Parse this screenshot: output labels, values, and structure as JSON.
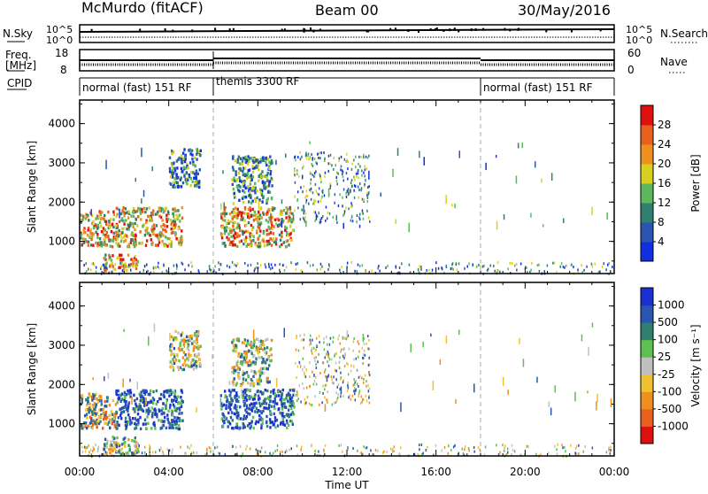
{
  "header": {
    "station": "McMurdo (fitACF)",
    "beam": "Beam 00",
    "date": "30/May/2016"
  },
  "top_strip": {
    "nsky_label": "N.Sky",
    "nsearch_label": "N.Search",
    "nsky_ticks": [
      "10^5",
      "10^0"
    ],
    "nsearch_ticks": [
      "10^5",
      "10^0"
    ],
    "freq_label_1": "Freq.",
    "freq_label_2": "[MHz]",
    "freq_ticks": [
      "18",
      "8"
    ],
    "nave_label": "Nave",
    "nave_ticks": [
      "60",
      "0"
    ],
    "cpid_label": "CPID",
    "cpid_segments": [
      {
        "label": "normal (fast) 151 RF",
        "start_hour": 0,
        "end_hour": 6
      },
      {
        "label": "themis 3300 RF",
        "start_hour": 6,
        "end_hour": 18
      },
      {
        "label": "normal (fast) 151 RF",
        "start_hour": 18,
        "end_hour": 24
      }
    ]
  },
  "chart_data": [
    {
      "type": "heatmap",
      "parameter": "Power",
      "ylabel": "Slant Range [km]",
      "ylim": [
        180,
        4600
      ],
      "yticks": [
        "1000",
        "2000",
        "3000",
        "4000"
      ],
      "xlim": [
        0,
        24
      ],
      "colorbar_label": "Power [dB]",
      "colorbar_ticks": [
        "4",
        "8",
        "12",
        "16",
        "20",
        "24",
        "28"
      ],
      "colorbar_colors": [
        "#1030e0",
        "#2a55b0",
        "#2f8070",
        "#5db85d",
        "#d8d020",
        "#ee9020",
        "#e86020",
        "#e01010"
      ],
      "echo_regions": [
        {
          "start_hour": 0.0,
          "end_hour": 1.6,
          "range_km": [
            900,
            1800
          ],
          "level": "high"
        },
        {
          "start_hour": 1.0,
          "end_hour": 2.6,
          "range_km": [
            250,
            700
          ],
          "level": "high"
        },
        {
          "start_hour": 1.6,
          "end_hour": 4.6,
          "range_km": [
            900,
            1900
          ],
          "level": "high"
        },
        {
          "start_hour": 4.0,
          "end_hour": 5.4,
          "range_km": [
            2400,
            3400
          ],
          "level": "mid"
        },
        {
          "start_hour": 6.3,
          "end_hour": 9.6,
          "range_km": [
            900,
            1900
          ],
          "level": "high"
        },
        {
          "start_hour": 6.8,
          "end_hour": 8.6,
          "range_km": [
            2000,
            3200
          ],
          "level": "mid"
        },
        {
          "start_hour": 9.6,
          "end_hour": 13.0,
          "range_km": [
            1500,
            3300
          ],
          "level": "sparse"
        },
        {
          "start_hour": 0.0,
          "end_hour": 24.0,
          "range_km": [
            200,
            500
          ],
          "level": "sparse"
        }
      ]
    },
    {
      "type": "heatmap",
      "parameter": "Velocity",
      "ylabel": "Slant Range [km]",
      "ylim": [
        180,
        4600
      ],
      "yticks": [
        "1000",
        "2000",
        "3000",
        "4000"
      ],
      "xlim": [
        0,
        24
      ],
      "xticks": [
        "00:00",
        "04:00",
        "08:00",
        "12:00",
        "16:00",
        "20:00",
        "00:00"
      ],
      "xlabel": "Time UT",
      "colorbar_label": "Velocity [m s⁻¹]",
      "colorbar_ticks": [
        "1000",
        "500",
        "100",
        "25",
        "-25",
        "-100",
        "-500",
        "-1000"
      ],
      "colorbar_colors": [
        "#1a30d0",
        "#2a55b0",
        "#2f8070",
        "#5dc050",
        "#c0c0c0",
        "#f0c030",
        "#ee9020",
        "#e86020",
        "#e01010"
      ],
      "echo_regions": [
        {
          "start_hour": 0.0,
          "end_hour": 1.6,
          "range_km": [
            900,
            1800
          ],
          "level": "neg"
        },
        {
          "start_hour": 1.0,
          "end_hour": 2.6,
          "range_km": [
            250,
            700
          ],
          "level": "mix"
        },
        {
          "start_hour": 1.6,
          "end_hour": 4.6,
          "range_km": [
            900,
            1900
          ],
          "level": "pos"
        },
        {
          "start_hour": 4.0,
          "end_hour": 5.4,
          "range_km": [
            2400,
            3400
          ],
          "level": "mix"
        },
        {
          "start_hour": 6.3,
          "end_hour": 9.6,
          "range_km": [
            900,
            1900
          ],
          "level": "pos"
        },
        {
          "start_hour": 6.8,
          "end_hour": 8.6,
          "range_km": [
            2000,
            3200
          ],
          "level": "mix"
        },
        {
          "start_hour": 9.6,
          "end_hour": 13.0,
          "range_km": [
            1500,
            3300
          ],
          "level": "sparse"
        },
        {
          "start_hour": 0.0,
          "end_hour": 24.0,
          "range_km": [
            200,
            500
          ],
          "level": "sparse"
        }
      ]
    }
  ]
}
